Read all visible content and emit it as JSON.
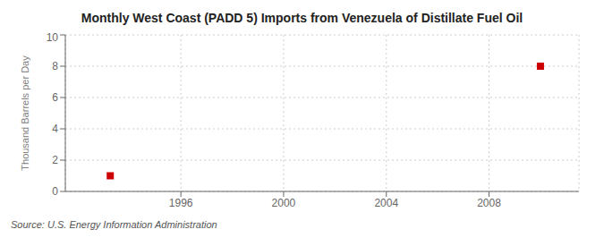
{
  "chart_data": {
    "type": "scatter",
    "title": "Monthly West Coast (PADD 5) Imports from Venezuela of Distillate Fuel Oil",
    "ylabel": "Thousand Barrels per Day",
    "annotation": "Source: U.S. Energy Information Administration",
    "x": [
      1993.25,
      2010.0
    ],
    "values": [
      1.0,
      8.0
    ],
    "color": "#cc0000",
    "marker": "square",
    "xlim": [
      1991.5,
      2011.5
    ],
    "ylim": [
      0,
      10
    ],
    "xticks": [
      1996,
      2000,
      2004,
      2008
    ],
    "yticks": [
      0,
      2,
      4,
      6,
      8,
      10
    ],
    "grid": true
  }
}
